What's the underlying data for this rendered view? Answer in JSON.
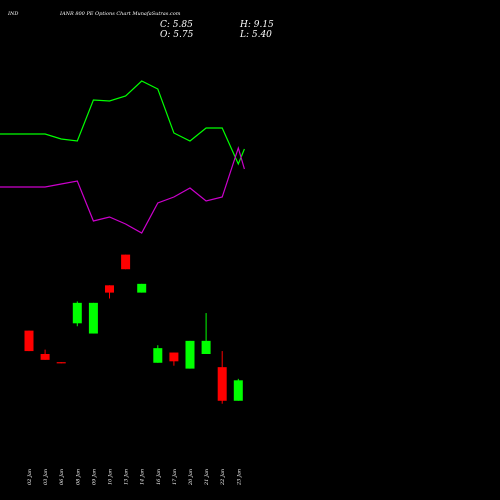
{
  "header": {
    "symbol": "IND",
    "title": "IANR 800 PE Options Chart MunafaSutras.com",
    "close": "C: 5.85",
    "high": "H: 9.15",
    "open": "O: 5.75",
    "low": "L: 5.40"
  },
  "chart_data": {
    "type": "candlestick",
    "categories": [
      "02 Jan",
      "03 Jan",
      "06 Jan",
      "08 Jan",
      "09 Jan",
      "10 Jan",
      "13 Jan",
      "14 Jan",
      "16 Jan",
      "17 Jan",
      "20 Jan",
      "21 Jan",
      "22 Jan",
      "23 Jan"
    ],
    "ohlc": [
      {
        "date": "02 Jan",
        "open": 34.0,
        "high": 34.0,
        "low": 27.0,
        "close": 27.0
      },
      {
        "date": "03 Jan",
        "open": 26.0,
        "high": 27.5,
        "low": 24.0,
        "close": 24.0
      },
      {
        "date": "06 Jan",
        "open": 23.2,
        "high": 23.2,
        "low": 22.8,
        "close": 22.8
      },
      {
        "date": "08 Jan",
        "open": 36.5,
        "high": 44.0,
        "low": 35.5,
        "close": 43.5
      },
      {
        "date": "09 Jan",
        "open": 33.0,
        "high": 43.5,
        "low": 33.0,
        "close": 43.5
      },
      {
        "date": "10 Jan",
        "open": 49.5,
        "high": 49.5,
        "low": 45.0,
        "close": 47.0
      },
      {
        "date": "13 Jan",
        "open": 60.0,
        "high": 60.0,
        "low": 55.0,
        "close": 55.0
      },
      {
        "date": "14 Jan",
        "open": 47.0,
        "high": 50.0,
        "low": 47.0,
        "close": 50.0
      },
      {
        "date": "16 Jan",
        "open": 23.0,
        "high": 29.0,
        "low": 23.0,
        "close": 28.0
      },
      {
        "date": "17 Jan",
        "open": 26.5,
        "high": 26.5,
        "low": 22.0,
        "close": 23.5
      },
      {
        "date": "20 Jan",
        "open": 21.0,
        "high": 30.5,
        "low": 21.0,
        "close": 30.5
      },
      {
        "date": "21 Jan",
        "open": 26.0,
        "high": 40.0,
        "low": 26.0,
        "close": 30.5
      },
      {
        "date": "22 Jan",
        "open": 21.5,
        "high": 27.0,
        "low": 9.0,
        "close": 10.0
      },
      {
        "date": "23 Jan",
        "open": 10.0,
        "high": 17.5,
        "low": 10.0,
        "close": 17.0
      }
    ],
    "upper_band": [
      134,
      134,
      139,
      141,
      100,
      101,
      96,
      81,
      89,
      133,
      141,
      128,
      128,
      164,
      149
    ],
    "lower_band": [
      187,
      187,
      184,
      181,
      221,
      217,
      224,
      233,
      203,
      197,
      188,
      201,
      197,
      148,
      169
    ],
    "band_x": [
      "02 Jan",
      "03 Jan",
      "06 Jan",
      "08 Jan",
      "09 Jan",
      "10 Jan",
      "13 Jan",
      "14 Jan",
      "16 Jan",
      "17 Jan",
      "20 Jan",
      "21 Jan",
      "22 Jan",
      "23 Jan",
      "24 Jan"
    ],
    "ylim": [
      0,
      65
    ],
    "colors": {
      "up": "#00ff00",
      "down": "#ff0000",
      "upper": "#00ff00",
      "lower": "#cc00cc",
      "background": "#000000"
    },
    "grid": false,
    "legend": "none"
  }
}
